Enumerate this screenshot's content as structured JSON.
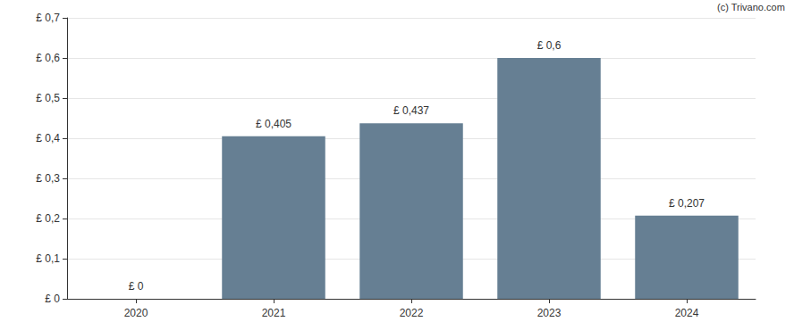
{
  "chart_data": {
    "type": "bar",
    "annotation": "(c) Trivano.com",
    "categories": [
      "2020",
      "2021",
      "2022",
      "2023",
      "2024"
    ],
    "values": [
      0,
      0.405,
      0.437,
      0.6,
      0.207
    ],
    "value_labels": [
      "£ 0",
      "£ 0,405",
      "£ 0,437",
      "£ 0,6",
      "£ 0,207"
    ],
    "data_labels": true,
    "color": "#667f93",
    "ylim": [
      0,
      0.7
    ],
    "yticks": [
      {
        "value": 0,
        "label": "£ 0"
      },
      {
        "value": 0.1,
        "label": "£ 0,1"
      },
      {
        "value": 0.2,
        "label": "£ 0,2"
      },
      {
        "value": 0.3,
        "label": "£ 0,3"
      },
      {
        "value": 0.4,
        "label": "£ 0,4"
      },
      {
        "value": 0.5,
        "label": "£ 0,5"
      },
      {
        "value": 0.6,
        "label": "£ 0,6"
      },
      {
        "value": 0.7,
        "label": "£ 0,7"
      }
    ],
    "grid": true
  }
}
